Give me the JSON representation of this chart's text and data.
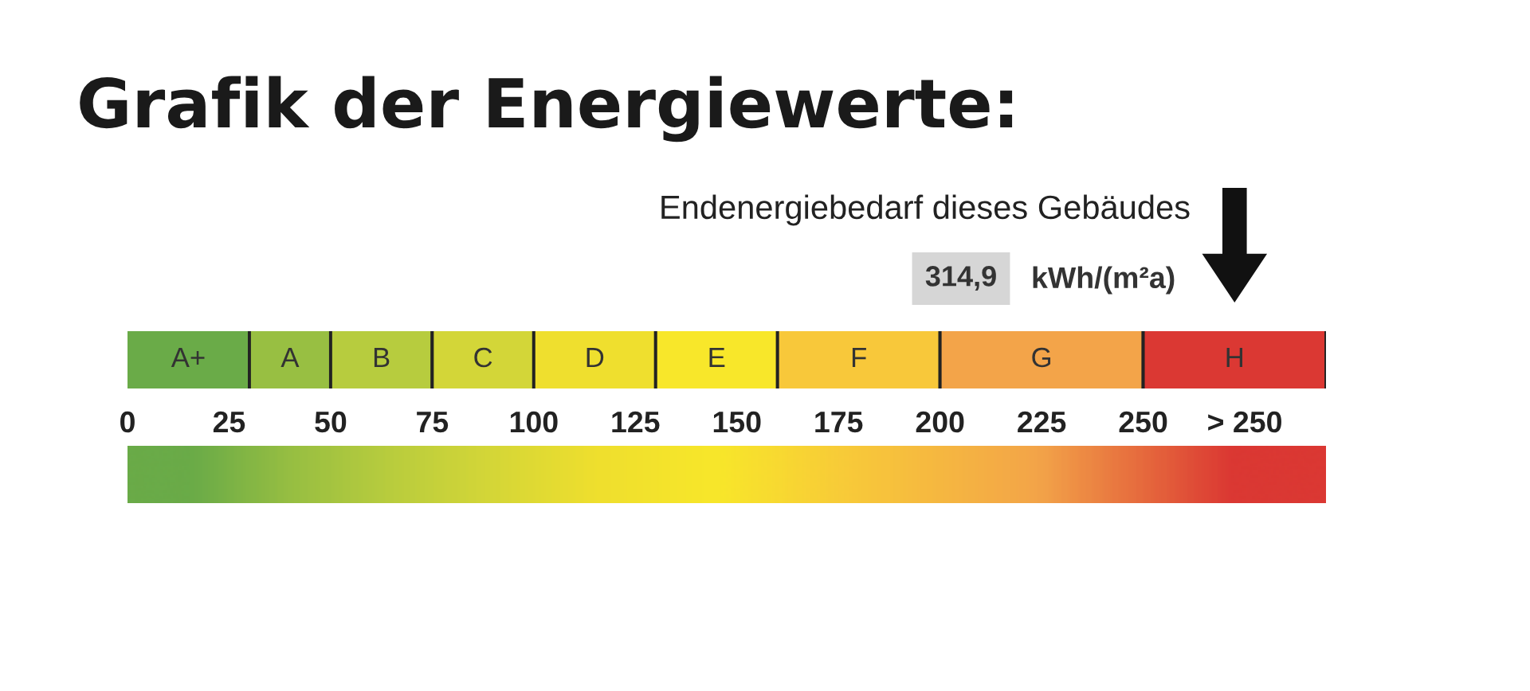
{
  "chart_data": {
    "type": "bar",
    "orientation": "horizontal",
    "stacked": true,
    "title": "Grafik der Energiewerte:",
    "annotations": [
      "Endenergiebedarf dieses Gebäudes",
      "314,9",
      "kWh/(m²a)"
    ],
    "categories": [
      null
    ],
    "series": [
      {
        "name": "A+",
        "color": "#6aab48",
        "values": [
          30
        ]
      },
      {
        "name": "A",
        "color": "#98bf42",
        "values": [
          20
        ]
      },
      {
        "name": "B",
        "color": "#b7cc3e",
        "values": [
          25
        ]
      },
      {
        "name": "C",
        "color": "#d3d638",
        "values": [
          25
        ]
      },
      {
        "name": "D",
        "color": "#efdf2e",
        "values": [
          30
        ]
      },
      {
        "name": "E",
        "color": "#f8e72a",
        "values": [
          30
        ]
      },
      {
        "name": "F",
        "color": "#f8c83a",
        "values": [
          40
        ]
      },
      {
        "name": "G",
        "color": "#f3a449",
        "values": [
          50
        ]
      },
      {
        "name": "H",
        "color": "#db3833",
        "values": [
          45
        ]
      }
    ],
    "xlim": [
      0,
      295
    ],
    "xticks": [
      0,
      25,
      50,
      75,
      100,
      125,
      150,
      175,
      200,
      225,
      250,
      {
        "value": 275,
        "label": "> 250"
      }
    ]
  }
}
